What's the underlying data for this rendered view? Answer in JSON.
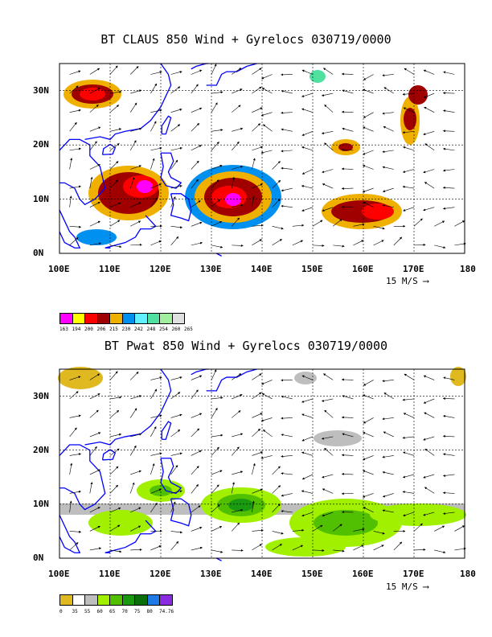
{
  "panel1": {
    "title": "BT CLAUS 850 Wind + Gyrelocs 030719/0000",
    "xticks": [
      "100E",
      "110E",
      "120E",
      "130E",
      "140E",
      "150E",
      "160E",
      "170E",
      "180"
    ],
    "yticks": [
      "30N",
      "20N",
      "10N",
      "0N"
    ],
    "vector_scale": "15 M/S",
    "legend": {
      "labels": [
        "163",
        "194",
        "200",
        "206",
        "215",
        "230",
        "242",
        "248",
        "254",
        "260",
        "265"
      ],
      "colors": [
        "#ff00ff",
        "#ffff00",
        "#ff0000",
        "#a00000",
        "#f0b000",
        "#0090f0",
        "#60f0ff",
        "#50e0a0",
        "#a0f0a0",
        "#e0e0e0"
      ]
    }
  },
  "panel2": {
    "title": "BT Pwat 850 Wind + Gyrelocs 030719/0000",
    "xticks": [
      "100E",
      "110E",
      "120E",
      "130E",
      "140E",
      "150E",
      "160E",
      "170E",
      "180"
    ],
    "yticks": [
      "30N",
      "20N",
      "10N",
      "0N"
    ],
    "vector_scale": "15 M/S",
    "legend": {
      "labels": [
        "0",
        "35",
        "55",
        "60",
        "65",
        "70",
        "75",
        "80",
        "74.76"
      ],
      "colors": [
        "#e0b820",
        "#ffffff",
        "#bebebe",
        "#a0f000",
        "#50c000",
        "#1a9a10",
        "#0a6e0a",
        "#1e78e6",
        "#8a2be2"
      ]
    }
  }
}
